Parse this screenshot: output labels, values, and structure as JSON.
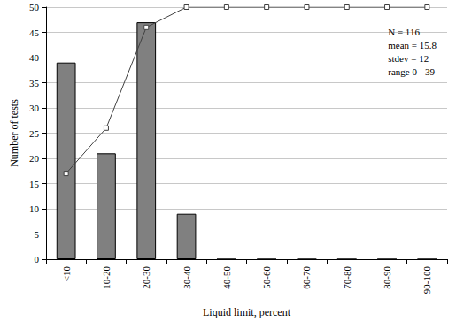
{
  "chart_data": {
    "type": "bar",
    "x_label": "Liquid limit, percent",
    "y_label": "Number of tests",
    "categories": [
      "<10",
      "10-20",
      "20-30",
      "30-40",
      "40-50",
      "50-60",
      "60-70",
      "70-80",
      "80-90",
      "90-100"
    ],
    "series": [
      {
        "type": "bar",
        "color": "#808080",
        "values": [
          39,
          21,
          47,
          9,
          0,
          0,
          0,
          0,
          0,
          0
        ]
      },
      {
        "type": "line",
        "color": "#404040",
        "marker": "square",
        "values": [
          17,
          26,
          46,
          50,
          50,
          50,
          50,
          50,
          50,
          50
        ]
      }
    ],
    "annotations": [
      "N = 116",
      "mean = 15.8",
      "stdev = 12",
      "range 0 - 39"
    ],
    "ylim": [
      0,
      50
    ],
    "yticks": [
      0,
      5,
      10,
      15,
      20,
      25,
      30,
      35,
      40,
      45,
      50
    ],
    "grid": true
  }
}
